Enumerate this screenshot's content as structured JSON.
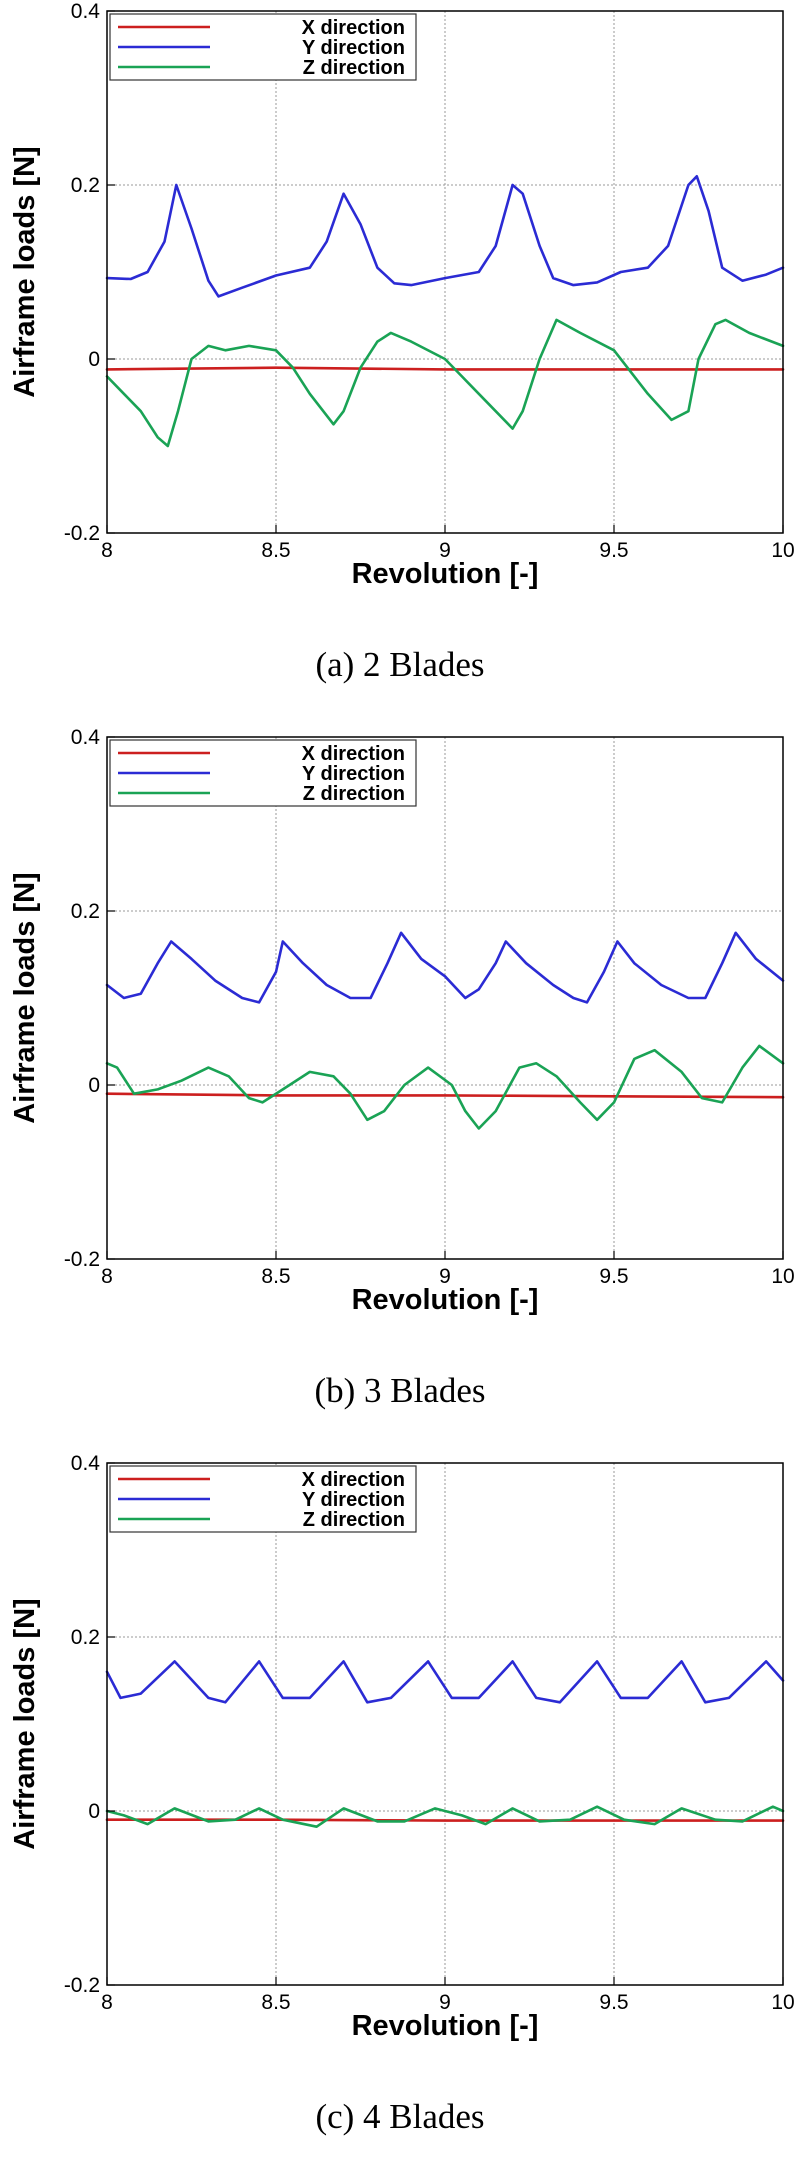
{
  "chart_data": [
    {
      "type": "line",
      "caption": "(a)  2  Blades",
      "xlabel": "Revolution [-]",
      "ylabel": "Airframe loads [N]",
      "xlim": [
        8,
        10
      ],
      "ylim": [
        -0.2,
        0.4
      ],
      "xticks": [
        8,
        8.5,
        9,
        9.5,
        10
      ],
      "xtick_labels": [
        "8",
        "8.5",
        "9",
        "9.5",
        "10"
      ],
      "yticks": [
        -0.2,
        0,
        0.2,
        0.4
      ],
      "ytick_labels": [
        "-0.2",
        "0",
        "0.2",
        "0.4"
      ],
      "grid": true,
      "legend_position": "top-left",
      "series": [
        {
          "name": "X direction",
          "color": "#cc1f1f",
          "x": [
            8,
            8.5,
            9,
            9.5,
            10
          ],
          "y": [
            -0.012,
            -0.01,
            -0.012,
            -0.012,
            -0.012
          ]
        },
        {
          "name": "Y direction",
          "color": "#2b2bd4",
          "x": [
            8,
            8.07,
            8.12,
            8.17,
            8.205,
            8.25,
            8.3,
            8.33,
            8.4,
            8.5,
            8.6,
            8.65,
            8.7,
            8.75,
            8.8,
            8.85,
            8.9,
            9.0,
            9.1,
            9.15,
            9.2,
            9.23,
            9.28,
            9.32,
            9.38,
            9.45,
            9.52,
            9.6,
            9.66,
            9.72,
            9.745,
            9.78,
            9.82,
            9.88,
            9.95,
            10
          ],
          "y": [
            0.093,
            0.092,
            0.1,
            0.135,
            0.2,
            0.15,
            0.09,
            0.072,
            0.082,
            0.096,
            0.105,
            0.135,
            0.19,
            0.155,
            0.105,
            0.087,
            0.085,
            0.093,
            0.1,
            0.13,
            0.2,
            0.19,
            0.13,
            0.093,
            0.085,
            0.088,
            0.1,
            0.105,
            0.13,
            0.2,
            0.21,
            0.17,
            0.105,
            0.09,
            0.097,
            0.105
          ]
        },
        {
          "name": "Z direction",
          "color": "#1aa355",
          "x": [
            8,
            8.05,
            8.1,
            8.15,
            8.18,
            8.21,
            8.25,
            8.3,
            8.35,
            8.42,
            8.5,
            8.55,
            8.6,
            8.67,
            8.7,
            8.75,
            8.8,
            8.84,
            8.9,
            9.0,
            9.05,
            9.1,
            9.15,
            9.2,
            9.23,
            9.28,
            9.33,
            9.4,
            9.5,
            9.55,
            9.6,
            9.67,
            9.72,
            9.75,
            9.8,
            9.83,
            9.9,
            10
          ],
          "y": [
            -0.02,
            -0.04,
            -0.06,
            -0.09,
            -0.1,
            -0.06,
            0.0,
            0.015,
            0.01,
            0.015,
            0.01,
            -0.01,
            -0.04,
            -0.075,
            -0.06,
            -0.01,
            0.02,
            0.03,
            0.02,
            0.0,
            -0.02,
            -0.04,
            -0.06,
            -0.08,
            -0.06,
            0.0,
            0.045,
            0.03,
            0.01,
            -0.015,
            -0.04,
            -0.07,
            -0.06,
            0.0,
            0.04,
            0.045,
            0.03,
            0.015
          ]
        }
      ]
    },
    {
      "type": "line",
      "caption": "(b)  3  Blades",
      "xlabel": "Revolution [-]",
      "ylabel": "Airframe loads [N]",
      "xlim": [
        8,
        10
      ],
      "ylim": [
        -0.2,
        0.4
      ],
      "xticks": [
        8,
        8.5,
        9,
        9.5,
        10
      ],
      "xtick_labels": [
        "8",
        "8.5",
        "9",
        "9.5",
        "10"
      ],
      "yticks": [
        -0.2,
        0,
        0.2,
        0.4
      ],
      "ytick_labels": [
        "-0.2",
        "0",
        "0.2",
        "0.4"
      ],
      "grid": true,
      "legend_position": "top-left",
      "series": [
        {
          "name": "X direction",
          "color": "#cc1f1f",
          "x": [
            8,
            8.5,
            9,
            9.5,
            10
          ],
          "y": [
            -0.01,
            -0.012,
            -0.012,
            -0.013,
            -0.014
          ]
        },
        {
          "name": "Y direction",
          "color": "#2b2bd4",
          "x": [
            8,
            8.05,
            8.1,
            8.15,
            8.19,
            8.25,
            8.32,
            8.4,
            8.45,
            8.5,
            8.52,
            8.58,
            8.65,
            8.72,
            8.78,
            8.83,
            8.87,
            8.93,
            9.0,
            9.06,
            9.1,
            9.15,
            9.18,
            9.24,
            9.32,
            9.38,
            9.42,
            9.47,
            9.51,
            9.56,
            9.64,
            9.72,
            9.77,
            9.82,
            9.86,
            9.92,
            10
          ],
          "y": [
            0.115,
            0.1,
            0.105,
            0.14,
            0.165,
            0.145,
            0.12,
            0.1,
            0.095,
            0.13,
            0.165,
            0.14,
            0.115,
            0.1,
            0.1,
            0.14,
            0.175,
            0.145,
            0.125,
            0.1,
            0.11,
            0.14,
            0.165,
            0.14,
            0.115,
            0.1,
            0.095,
            0.13,
            0.165,
            0.14,
            0.115,
            0.1,
            0.1,
            0.14,
            0.175,
            0.145,
            0.12
          ]
        },
        {
          "name": "Z direction",
          "color": "#1aa355",
          "x": [
            8,
            8.03,
            8.08,
            8.15,
            8.22,
            8.3,
            8.36,
            8.42,
            8.46,
            8.52,
            8.6,
            8.67,
            8.72,
            8.77,
            8.82,
            8.88,
            8.95,
            9.02,
            9.06,
            9.1,
            9.15,
            9.22,
            9.27,
            9.33,
            9.4,
            9.45,
            9.5,
            9.56,
            9.62,
            9.7,
            9.76,
            9.82,
            9.88,
            9.93,
            10
          ],
          "y": [
            0.025,
            0.02,
            -0.01,
            -0.005,
            0.005,
            0.02,
            0.01,
            -0.015,
            -0.02,
            -0.005,
            0.015,
            0.01,
            -0.01,
            -0.04,
            -0.03,
            0.0,
            0.02,
            0.0,
            -0.03,
            -0.05,
            -0.03,
            0.02,
            0.025,
            0.01,
            -0.02,
            -0.04,
            -0.02,
            0.03,
            0.04,
            0.015,
            -0.015,
            -0.02,
            0.02,
            0.045,
            0.025
          ]
        }
      ]
    },
    {
      "type": "line",
      "caption": "(c)  4  Blades",
      "xlabel": "Revolution [-]",
      "ylabel": "Airframe loads [N]",
      "xlim": [
        8,
        10
      ],
      "ylim": [
        -0.2,
        0.4
      ],
      "xticks": [
        8,
        8.5,
        9,
        9.5,
        10
      ],
      "xtick_labels": [
        "8",
        "8.5",
        "9",
        "9.5",
        "10"
      ],
      "yticks": [
        -0.2,
        0,
        0.2,
        0.4
      ],
      "ytick_labels": [
        "-0.2",
        "0",
        "0.2",
        "0.4"
      ],
      "grid": true,
      "legend_position": "top-left",
      "series": [
        {
          "name": "X direction",
          "color": "#cc1f1f",
          "x": [
            8,
            8.5,
            9,
            9.5,
            10
          ],
          "y": [
            -0.01,
            -0.01,
            -0.011,
            -0.011,
            -0.011
          ]
        },
        {
          "name": "Y direction",
          "color": "#2b2bd4",
          "x": [
            8,
            8.04,
            8.1,
            8.2,
            8.3,
            8.35,
            8.45,
            8.52,
            8.6,
            8.7,
            8.77,
            8.84,
            8.95,
            9.02,
            9.1,
            9.2,
            9.27,
            9.34,
            9.45,
            9.52,
            9.6,
            9.7,
            9.77,
            9.84,
            9.95,
            10
          ],
          "y": [
            0.16,
            0.13,
            0.135,
            0.172,
            0.13,
            0.125,
            0.172,
            0.13,
            0.13,
            0.172,
            0.125,
            0.13,
            0.172,
            0.13,
            0.13,
            0.172,
            0.13,
            0.125,
            0.172,
            0.13,
            0.13,
            0.172,
            0.125,
            0.13,
            0.172,
            0.15
          ]
        },
        {
          "name": "Z direction",
          "color": "#1aa355",
          "x": [
            8,
            8.05,
            8.12,
            8.2,
            8.3,
            8.38,
            8.45,
            8.52,
            8.62,
            8.7,
            8.8,
            8.88,
            8.97,
            9.05,
            9.12,
            9.2,
            9.28,
            9.37,
            9.45,
            9.53,
            9.62,
            9.7,
            9.8,
            9.88,
            9.97,
            10
          ],
          "y": [
            0.0,
            -0.005,
            -0.015,
            0.003,
            -0.012,
            -0.01,
            0.003,
            -0.01,
            -0.018,
            0.003,
            -0.012,
            -0.012,
            0.003,
            -0.005,
            -0.015,
            0.003,
            -0.012,
            -0.01,
            0.005,
            -0.01,
            -0.015,
            0.003,
            -0.01,
            -0.012,
            0.005,
            0.0
          ]
        }
      ]
    }
  ]
}
